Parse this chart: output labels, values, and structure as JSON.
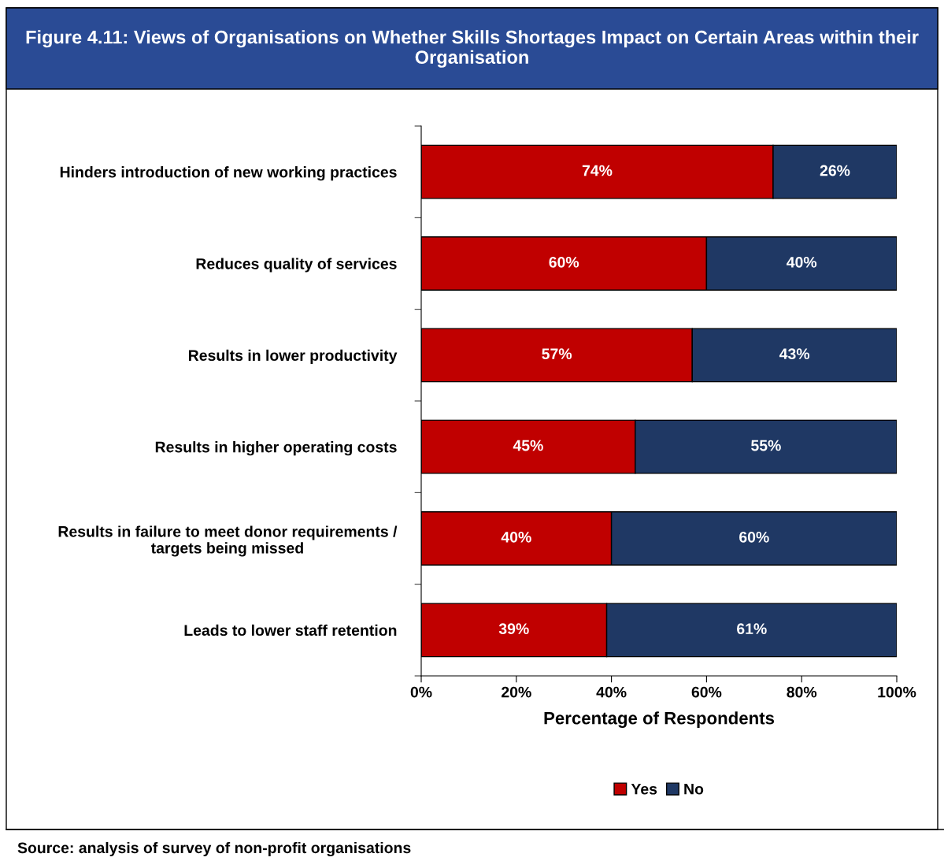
{
  "chart_data": {
    "type": "bar",
    "orientation": "horizontal",
    "stacked": true,
    "title": "Figure 4.11: Views of Organisations on Whether Skills Shortages Impact on Certain Areas within their Organisation",
    "categories": [
      "Hinders introduction of new working practices",
      "Reduces quality of services",
      "Results in lower productivity",
      "Results in higher operating costs",
      "Results in failure to meet donor requirements /\ntargets being missed",
      "Leads to lower staff retention"
    ],
    "series": [
      {
        "name": "Yes",
        "color": "#c00000",
        "values": [
          74,
          60,
          57,
          45,
          40,
          39
        ],
        "value_labels": [
          "74%",
          "60%",
          "57%",
          "45%",
          "40%",
          "39%"
        ]
      },
      {
        "name": "No",
        "color": "#1f3864",
        "values": [
          26,
          40,
          43,
          55,
          60,
          61
        ],
        "value_labels": [
          "26%",
          "40%",
          "43%",
          "55%",
          "60%",
          "61%"
        ]
      }
    ],
    "xlim": [
      0,
      100
    ],
    "xticks": [
      {
        "value": 0,
        "label": "0%"
      },
      {
        "value": 20,
        "label": "20%"
      },
      {
        "value": 40,
        "label": "40%"
      },
      {
        "value": 60,
        "label": "60%"
      },
      {
        "value": 80,
        "label": "80%"
      },
      {
        "value": 100,
        "label": "100%"
      }
    ],
    "xlabel": "Percentage of Respondents",
    "grid": false,
    "legend": "bottom",
    "annotations": [
      "Source: analysis of survey of non-profit organisations"
    ]
  }
}
